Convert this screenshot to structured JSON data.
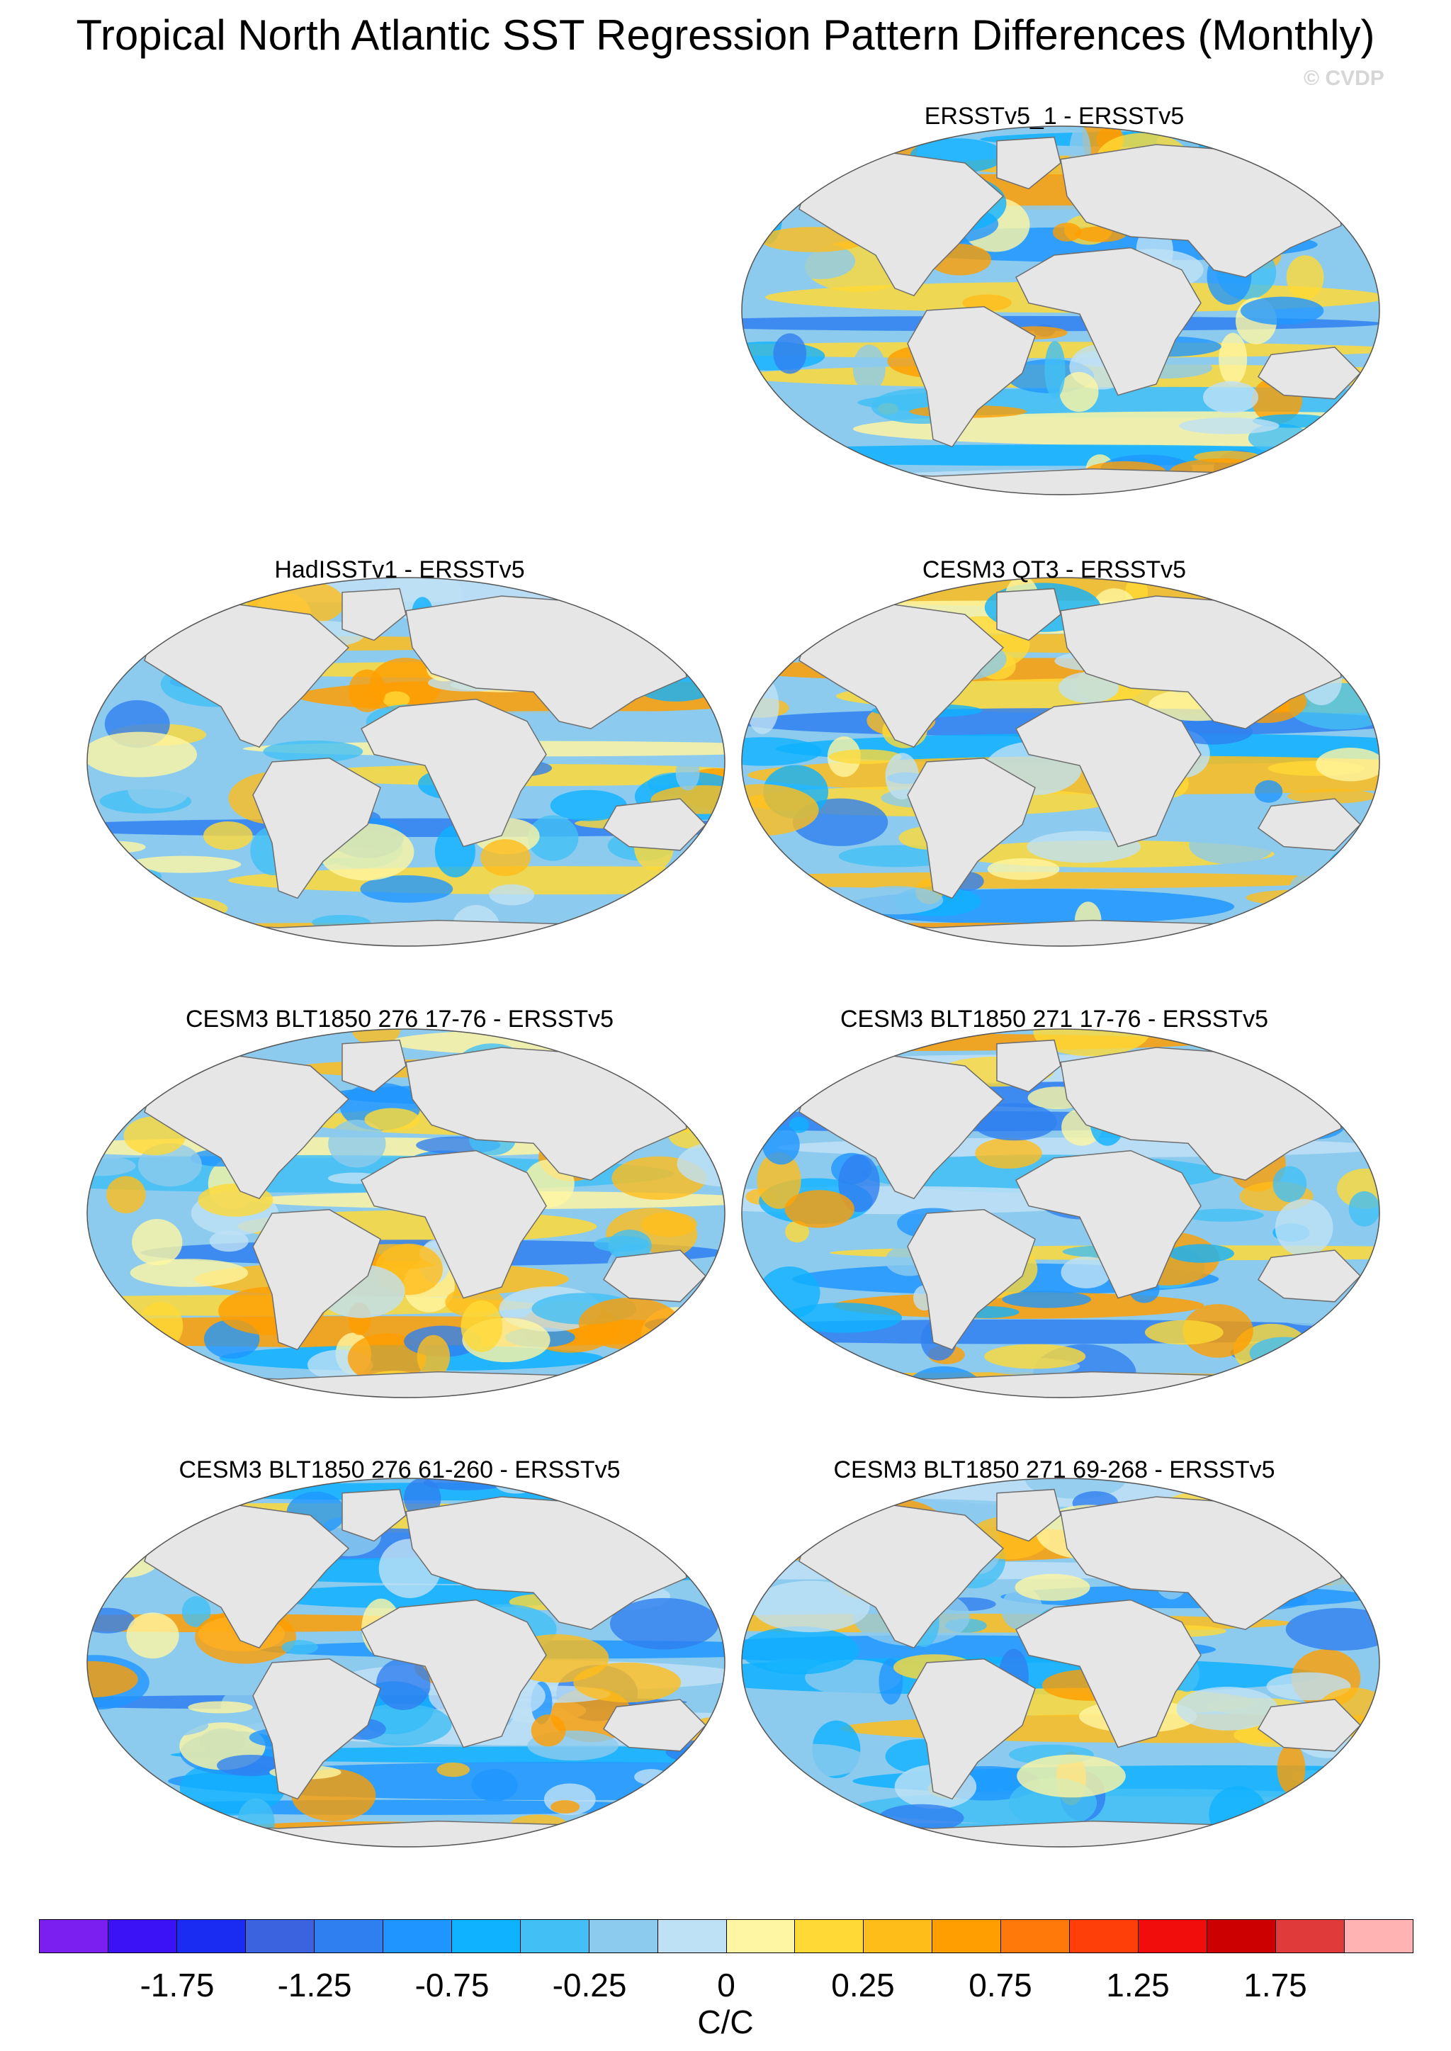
{
  "title": "Tropical North Atlantic SST Regression Pattern Differences (Monthly)",
  "copyright": "© CVDP",
  "panels": [
    {
      "title": "ERSSTv5_1 - ERSSTv5",
      "seed": 11
    },
    {
      "title": "HadISSTv1 - ERSSTv5",
      "seed": 23
    },
    {
      "title": "CESM3 QT3 - ERSSTv5",
      "seed": 37
    },
    {
      "title": "CESM3 BLT1850 276 17-76 - ERSSTv5",
      "seed": 41
    },
    {
      "title": "CESM3 BLT1850 271 17-76 - ERSSTv5",
      "seed": 53
    },
    {
      "title": "CESM3 BLT1850 276 61-260 - ERSSTv5",
      "seed": 67
    },
    {
      "title": "CESM3 BLT1850 271 69-268 - ERSSTv5",
      "seed": 79
    }
  ],
  "colorbar": {
    "units": "C/C",
    "labels": [
      "-1.75",
      "-1.25",
      "-0.75",
      "-0.25",
      "0",
      "0.25",
      "0.75",
      "1.25",
      "1.75"
    ],
    "colors": [
      "#7a1ff0",
      "#3a12f5",
      "#1a2cf2",
      "#3b63e0",
      "#2f7ff0",
      "#1f96ff",
      "#0fb2ff",
      "#42bff5",
      "#8ccbee",
      "#bfe1f5",
      "#fff6a3",
      "#ffd936",
      "#ffbd1a",
      "#ff9e00",
      "#ff780a",
      "#ff3f0a",
      "#f20d0d",
      "#cc0000",
      "#e03a3a",
      "#ffb3b3"
    ]
  },
  "land_color": "#e6e6e6",
  "coast_color": "#6e6e6e"
}
